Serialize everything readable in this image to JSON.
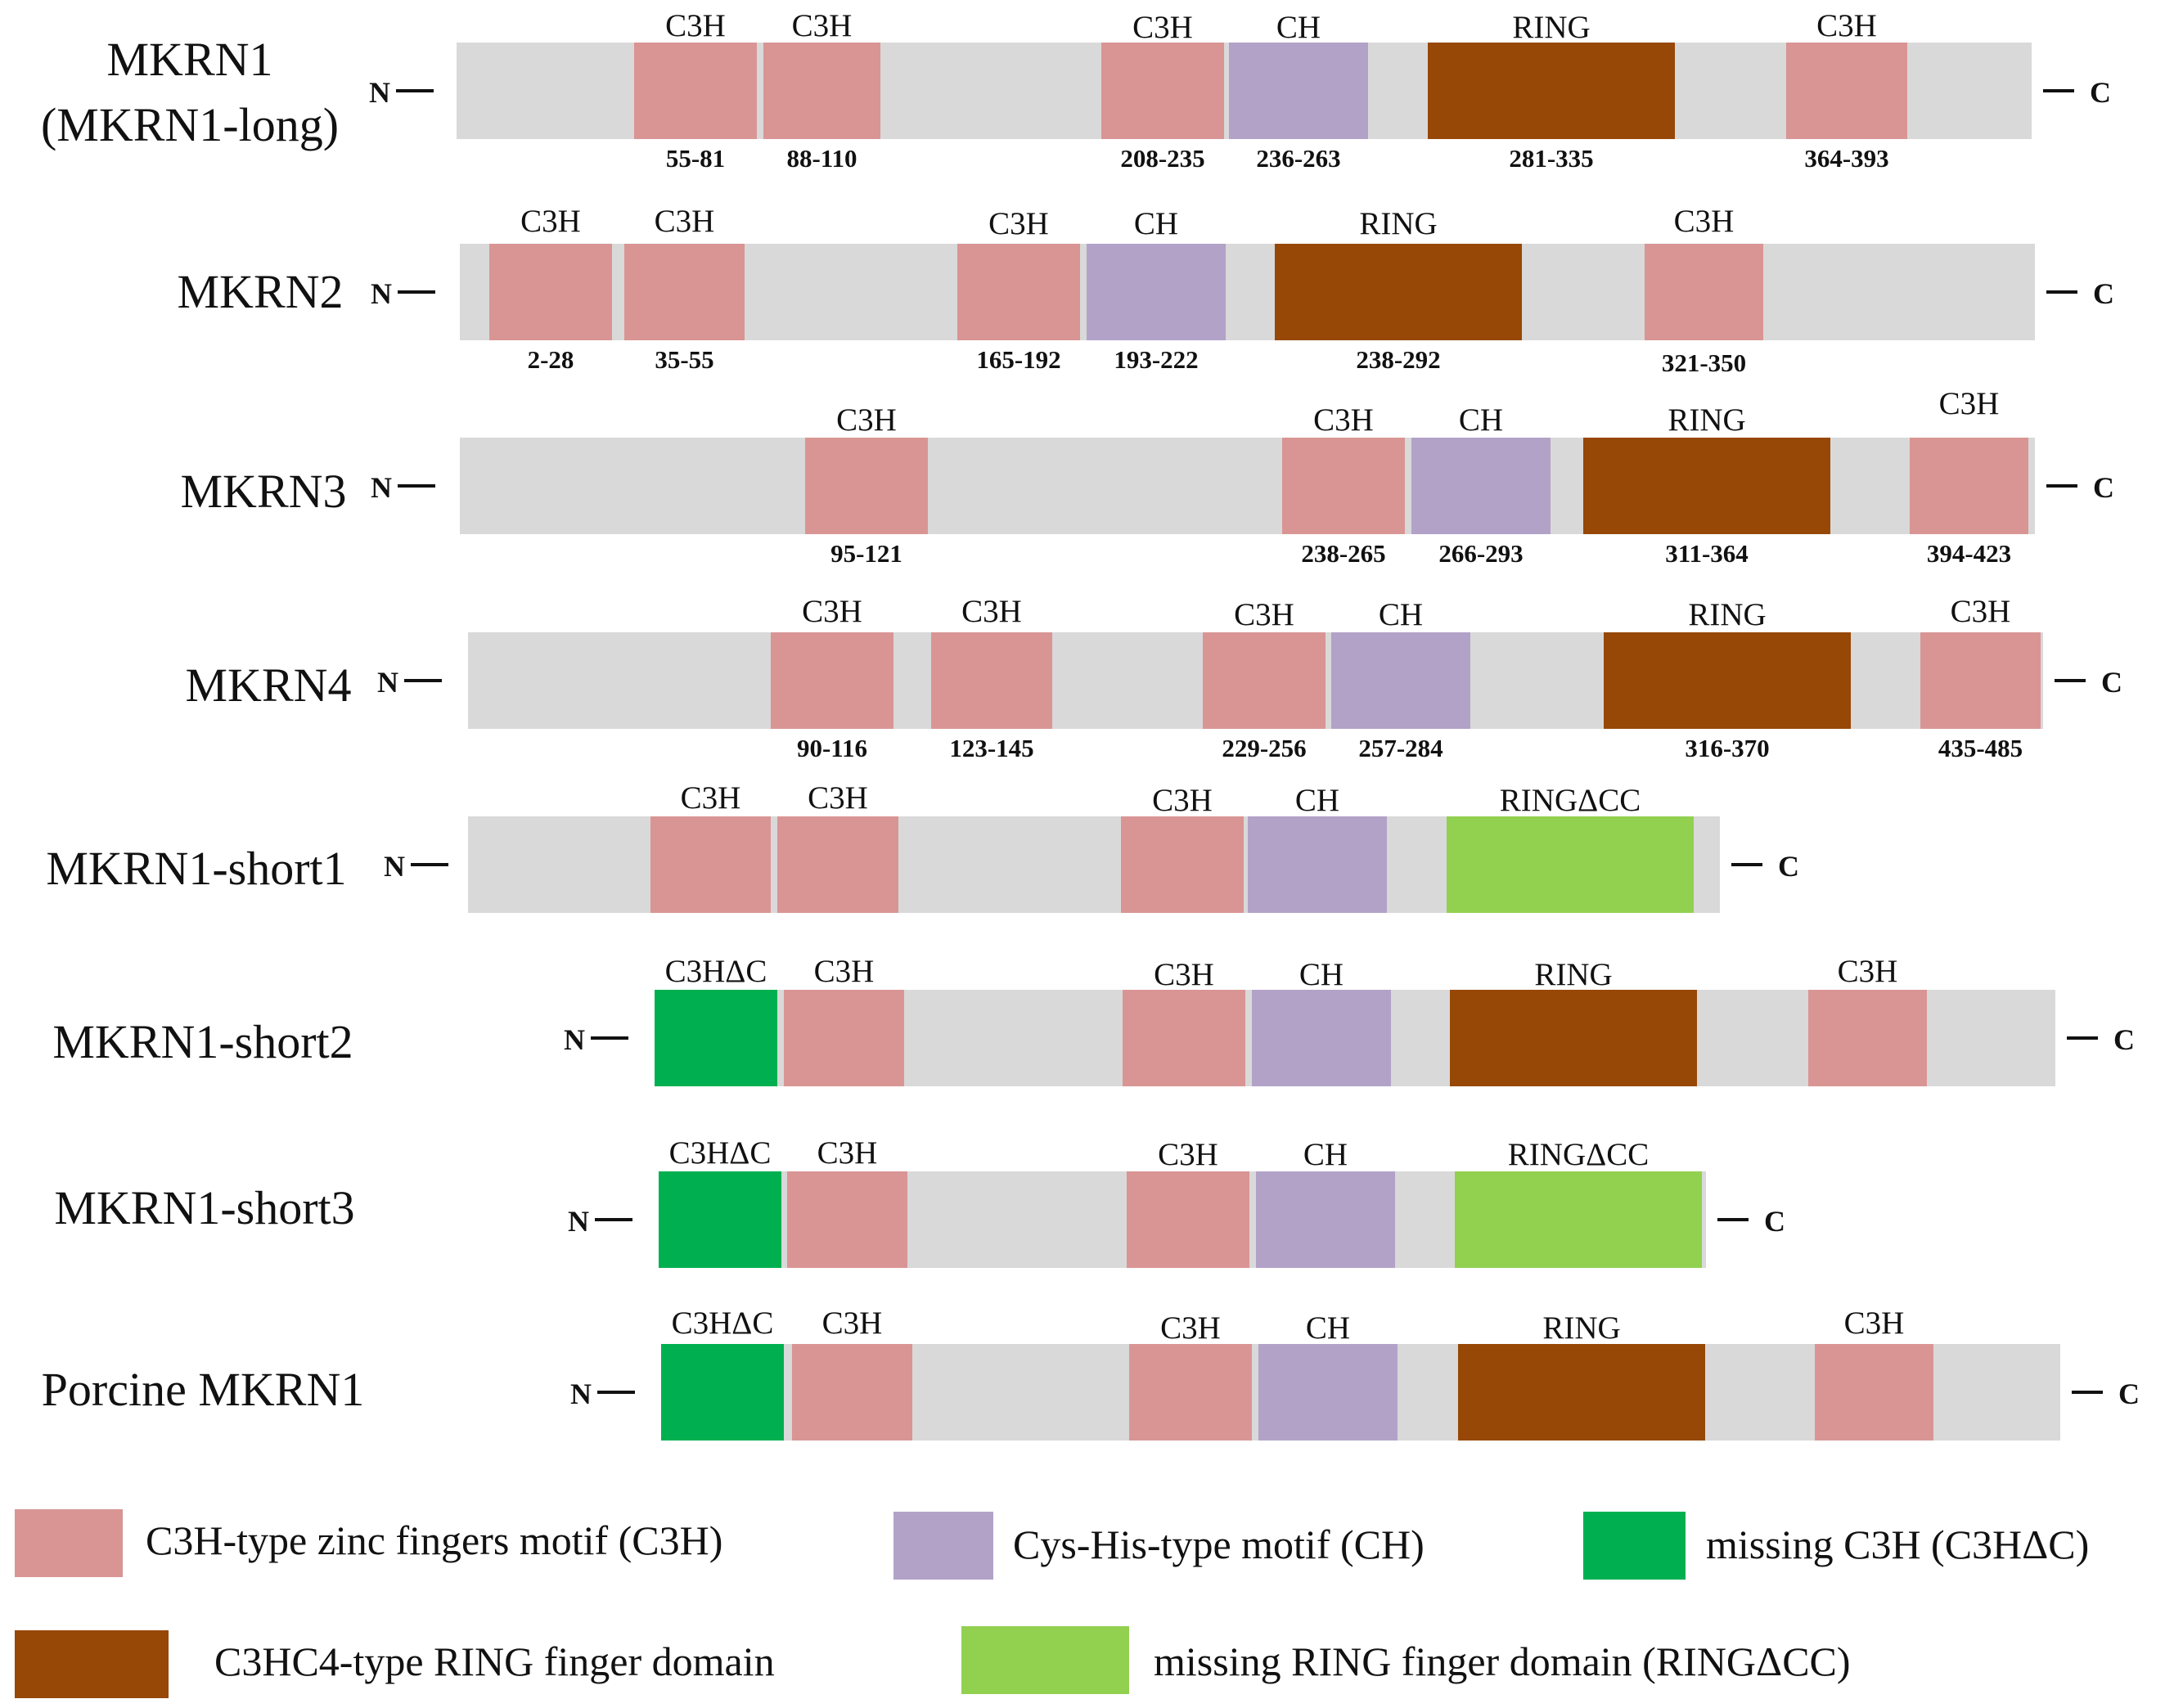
{
  "colors": {
    "chain": "#d9d9d9",
    "C3H": "#d99594",
    "CH": "#b2a2c7",
    "RING": "#974706",
    "C3HdC": "#00b050",
    "RINGdCC": "#92d050"
  },
  "terminals": {
    "n": "N",
    "c": "C"
  },
  "proteins": [
    {
      "name_lines": [
        "MKRN1",
        "(MKRN1-long)"
      ],
      "domains": [
        {
          "type": "C3H",
          "label": "C3H",
          "range": "55-81"
        },
        {
          "type": "C3H",
          "label": "C3H",
          "range": "88-110"
        },
        {
          "type": "C3H",
          "label": "C3H",
          "range": "208-235"
        },
        {
          "type": "CH",
          "label": "CH",
          "range": "236-263"
        },
        {
          "type": "RING",
          "label": "RING",
          "range": "281-335"
        },
        {
          "type": "C3H",
          "label": "C3H",
          "range": "364-393"
        }
      ]
    },
    {
      "name_lines": [
        "MKRN2"
      ],
      "domains": [
        {
          "type": "C3H",
          "label": "C3H",
          "range": "2-28"
        },
        {
          "type": "C3H",
          "label": "C3H",
          "range": "35-55"
        },
        {
          "type": "C3H",
          "label": "C3H",
          "range": "165-192"
        },
        {
          "type": "CH",
          "label": "CH",
          "range": "193-222"
        },
        {
          "type": "RING",
          "label": "RING",
          "range": "238-292"
        },
        {
          "type": "C3H",
          "label": "C3H",
          "range": "321-350"
        }
      ]
    },
    {
      "name_lines": [
        "MKRN3"
      ],
      "domains": [
        {
          "type": "C3H",
          "label": "C3H",
          "range": "95-121"
        },
        {
          "type": "C3H",
          "label": "C3H",
          "range": "238-265"
        },
        {
          "type": "CH",
          "label": "CH",
          "range": "266-293"
        },
        {
          "type": "RING",
          "label": "RING",
          "range": "311-364"
        },
        {
          "type": "C3H",
          "label": "C3H",
          "range": "394-423"
        }
      ]
    },
    {
      "name_lines": [
        "MKRN4"
      ],
      "domains": [
        {
          "type": "C3H",
          "label": "C3H",
          "range": "90-116"
        },
        {
          "type": "C3H",
          "label": "C3H",
          "range": "123-145"
        },
        {
          "type": "C3H",
          "label": "C3H",
          "range": "229-256"
        },
        {
          "type": "CH",
          "label": "CH",
          "range": "257-284"
        },
        {
          "type": "RING",
          "label": "RING",
          "range": "316-370"
        },
        {
          "type": "C3H",
          "label": "C3H",
          "range": "435-485"
        }
      ]
    },
    {
      "name_lines": [
        "MKRN1-short1"
      ],
      "domains": [
        {
          "type": "C3H",
          "label": "C3H"
        },
        {
          "type": "C3H",
          "label": "C3H"
        },
        {
          "type": "C3H",
          "label": "C3H"
        },
        {
          "type": "CH",
          "label": "CH"
        },
        {
          "type": "RINGdCC",
          "label": "RINGΔCC"
        }
      ]
    },
    {
      "name_lines": [
        "MKRN1-short2"
      ],
      "domains": [
        {
          "type": "C3HdC",
          "label": "C3HΔC"
        },
        {
          "type": "C3H",
          "label": "C3H"
        },
        {
          "type": "C3H",
          "label": "C3H"
        },
        {
          "type": "CH",
          "label": "CH"
        },
        {
          "type": "RING",
          "label": "RING"
        },
        {
          "type": "C3H",
          "label": "C3H"
        }
      ]
    },
    {
      "name_lines": [
        "MKRN1-short3"
      ],
      "domains": [
        {
          "type": "C3HdC",
          "label": "C3HΔC"
        },
        {
          "type": "C3H",
          "label": "C3H"
        },
        {
          "type": "C3H",
          "label": "C3H"
        },
        {
          "type": "CH",
          "label": "CH"
        },
        {
          "type": "RINGdCC",
          "label": "RINGΔCC"
        }
      ]
    },
    {
      "name_lines": [
        "Porcine MKRN1"
      ],
      "domains": [
        {
          "type": "C3HdC",
          "label": "C3HΔC"
        },
        {
          "type": "C3H",
          "label": "C3H"
        },
        {
          "type": "C3H",
          "label": "C3H"
        },
        {
          "type": "CH",
          "label": "CH"
        },
        {
          "type": "RING",
          "label": "RING"
        },
        {
          "type": "C3H",
          "label": "C3H"
        }
      ]
    }
  ],
  "legend": [
    {
      "type": "C3H",
      "text": "C3H-type zinc fingers motif (C3H)"
    },
    {
      "type": "CH",
      "text": "Cys-His-type motif (CH)"
    },
    {
      "type": "C3HdC",
      "text": "missing C3H (C3HΔC)"
    },
    {
      "type": "RING",
      "text": "C3HC4-type RING finger domain"
    },
    {
      "type": "RINGdCC",
      "text": "missing RING finger domain (RINGΔCC)"
    }
  ]
}
